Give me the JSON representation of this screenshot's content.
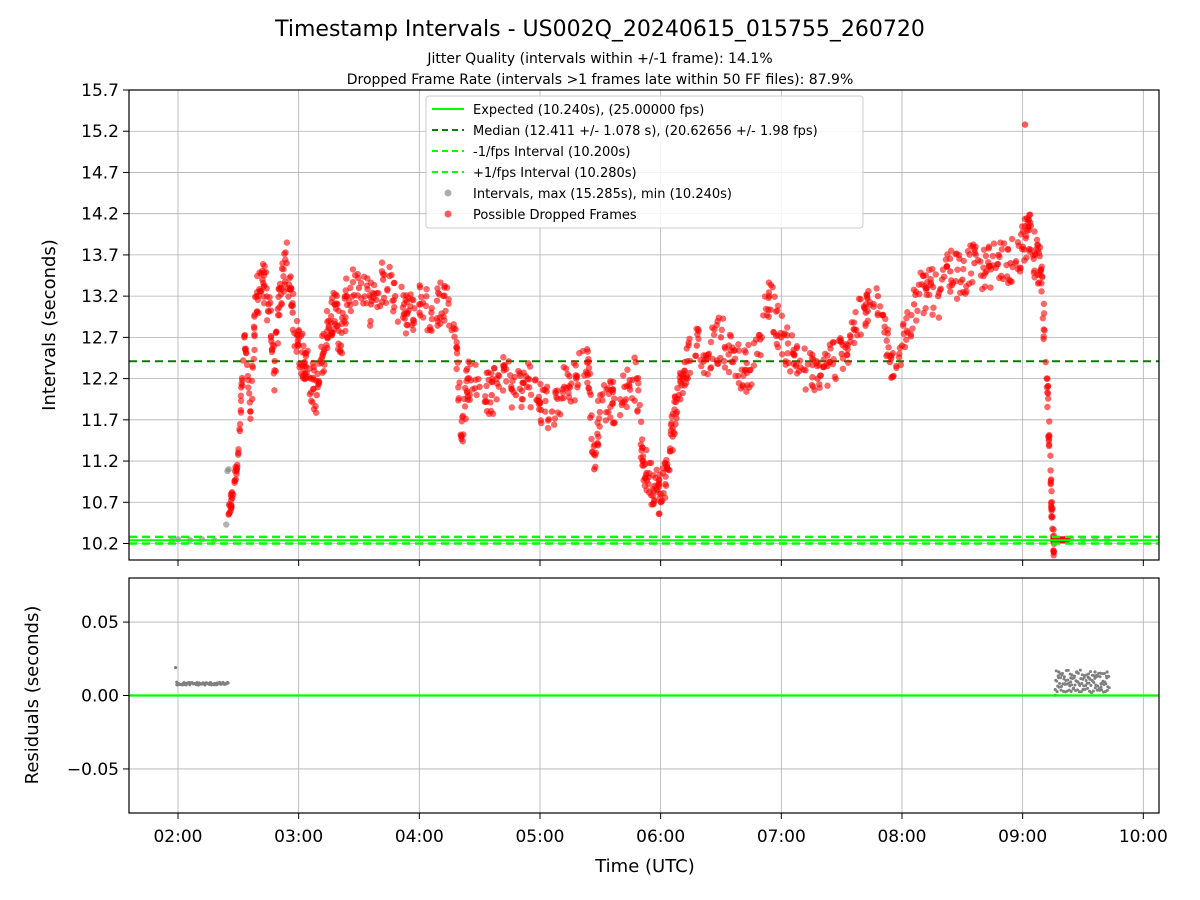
{
  "chart_data": [
    {
      "type": "scatter",
      "title": "Timestamp Intervals - US002Q_20240615_015755_260720",
      "subtitle_lines": [
        "Jitter Quality (intervals within +/-1 frame): 14.1%",
        "Dropped Frame Rate (intervals >1 frames late within 50 FF files): 87.9%"
      ],
      "xlabel": "",
      "ylabel": "Intervals (seconds)",
      "xlim_hours": [
        1.594,
        10.13
      ],
      "ylim": [
        10.0,
        15.7
      ],
      "x_tick_values": [
        2,
        3,
        4,
        5,
        6,
        7,
        8,
        9,
        10
      ],
      "y_tick_values": [
        10.2,
        10.7,
        11.2,
        11.7,
        12.2,
        12.7,
        13.2,
        13.7,
        14.2,
        14.7,
        15.2,
        15.7
      ],
      "y_tick_labels": [
        "10.2",
        "10.7",
        "11.2",
        "11.7",
        "12.2",
        "12.7",
        "13.2",
        "13.7",
        "14.2",
        "14.7",
        "15.2",
        "15.7"
      ],
      "grid": true,
      "legend_position": "top-center",
      "reference_lines": [
        {
          "name": "Expected (10.240s), (25.00000 fps)",
          "y": 10.24,
          "style": "solid",
          "color": "#00ff00"
        },
        {
          "name": "Median (12.411 +/- 1.078 s), (20.62656 +/- 1.98 fps)",
          "y": 12.411,
          "style": "dashed",
          "color": "#008000"
        },
        {
          "name": "-1/fps Interval (10.200s)",
          "y": 10.2,
          "style": "dashed",
          "color": "#00ff00"
        },
        {
          "name": "+1/fps Interval (10.280s)",
          "y": 10.28,
          "style": "dashed",
          "color": "#00ff00"
        }
      ],
      "series": [
        {
          "name": "Intervals, max (15.285s), min (10.240s)",
          "color": "#808080",
          "x_hours": [
            1.95,
            2.0,
            2.1,
            2.2,
            2.3,
            2.4,
            2.41,
            2.42,
            9.3,
            9.4,
            9.5,
            9.6,
            9.7
          ],
          "y": [
            10.24,
            10.25,
            10.24,
            10.25,
            10.24,
            10.43,
            11.08,
            11.1,
            10.25,
            10.26,
            10.25,
            10.26,
            10.25
          ]
        },
        {
          "name": "Possible Dropped Frames",
          "color": "#ff0000",
          "x_hours": [
            2.42,
            2.45,
            2.5,
            2.55,
            2.6,
            2.65,
            2.7,
            2.75,
            2.8,
            2.85,
            2.9,
            2.95,
            3.0,
            3.05,
            3.1,
            3.15,
            3.2,
            3.25,
            3.3,
            3.35,
            3.4,
            3.5,
            3.6,
            3.7,
            3.8,
            3.9,
            4.0,
            4.1,
            4.2,
            4.3,
            4.35,
            4.4,
            4.5,
            4.6,
            4.7,
            4.8,
            4.9,
            5.0,
            5.1,
            5.2,
            5.3,
            5.4,
            5.45,
            5.5,
            5.6,
            5.7,
            5.8,
            5.85,
            5.9,
            5.95,
            6.0,
            6.05,
            6.1,
            6.15,
            6.2,
            6.3,
            6.4,
            6.5,
            6.6,
            6.7,
            6.8,
            6.9,
            7.0,
            7.1,
            7.2,
            7.3,
            7.4,
            7.5,
            7.6,
            7.7,
            7.8,
            7.9,
            8.0,
            8.1,
            8.2,
            8.3,
            8.4,
            8.5,
            8.6,
            8.7,
            8.8,
            8.9,
            9.0,
            9.05,
            9.1,
            9.15,
            9.2,
            9.22,
            9.24,
            9.26,
            9.28,
            9.35,
            9.02
          ],
          "y": [
            10.55,
            10.75,
            11.3,
            12.7,
            11.8,
            13.2,
            13.4,
            13.1,
            12.3,
            13.3,
            13.6,
            13.0,
            12.6,
            12.4,
            12.2,
            12.0,
            12.5,
            12.9,
            13.1,
            12.6,
            13.2,
            13.3,
            13.1,
            13.4,
            13.2,
            13.0,
            13.1,
            13.0,
            13.2,
            12.8,
            11.5,
            12.2,
            12.1,
            12.0,
            12.3,
            12.0,
            12.2,
            11.9,
            11.8,
            12.1,
            12.2,
            12.4,
            11.1,
            12.0,
            11.9,
            12.1,
            12.2,
            11.2,
            11.0,
            10.9,
            10.8,
            11.1,
            11.6,
            12.0,
            12.4,
            12.6,
            12.5,
            12.7,
            12.4,
            12.3,
            12.5,
            13.2,
            12.7,
            12.5,
            12.3,
            12.2,
            12.4,
            12.5,
            12.8,
            13.0,
            13.2,
            12.4,
            12.6,
            13.1,
            13.3,
            13.2,
            13.5,
            13.4,
            13.6,
            13.5,
            13.7,
            13.6,
            13.8,
            14.0,
            13.7,
            13.5,
            12.2,
            11.5,
            10.6,
            10.25,
            10.25,
            10.25,
            15.28
          ]
        }
      ]
    },
    {
      "type": "scatter",
      "xlabel": "Time (UTC)",
      "ylabel": "Residuals (seconds)",
      "xlim_hours": [
        1.594,
        10.13
      ],
      "ylim": [
        -0.08,
        0.08
      ],
      "x_tick_values": [
        2,
        3,
        4,
        5,
        6,
        7,
        8,
        9,
        10
      ],
      "x_tick_labels": [
        "02:00",
        "03:00",
        "04:00",
        "05:00",
        "06:00",
        "07:00",
        "08:00",
        "09:00",
        "10:00"
      ],
      "y_tick_values": [
        -0.05,
        0.0,
        0.05
      ],
      "y_tick_labels": [
        "−0.05",
        "0.00",
        "0.05"
      ],
      "grid": true,
      "reference_lines": [
        {
          "y": 0.0,
          "style": "solid",
          "color": "#00ff00"
        }
      ],
      "series": [
        {
          "color": "#808080",
          "x_hours": [
            1.98,
            1.99,
            2.0,
            2.05,
            2.1,
            2.15,
            2.2,
            2.25,
            2.3,
            2.35,
            2.4,
            9.27,
            9.3,
            9.35,
            9.4,
            9.45,
            9.5,
            9.55,
            9.6,
            9.65,
            9.7
          ],
          "y": [
            0.019,
            0.009,
            0.008,
            0.008,
            0.008,
            0.008,
            0.008,
            0.008,
            0.008,
            0.008,
            0.008,
            0.004,
            0.016,
            0.008,
            0.012,
            0.016,
            0.004,
            0.012,
            0.016,
            0.008,
            0.016
          ]
        }
      ]
    }
  ]
}
